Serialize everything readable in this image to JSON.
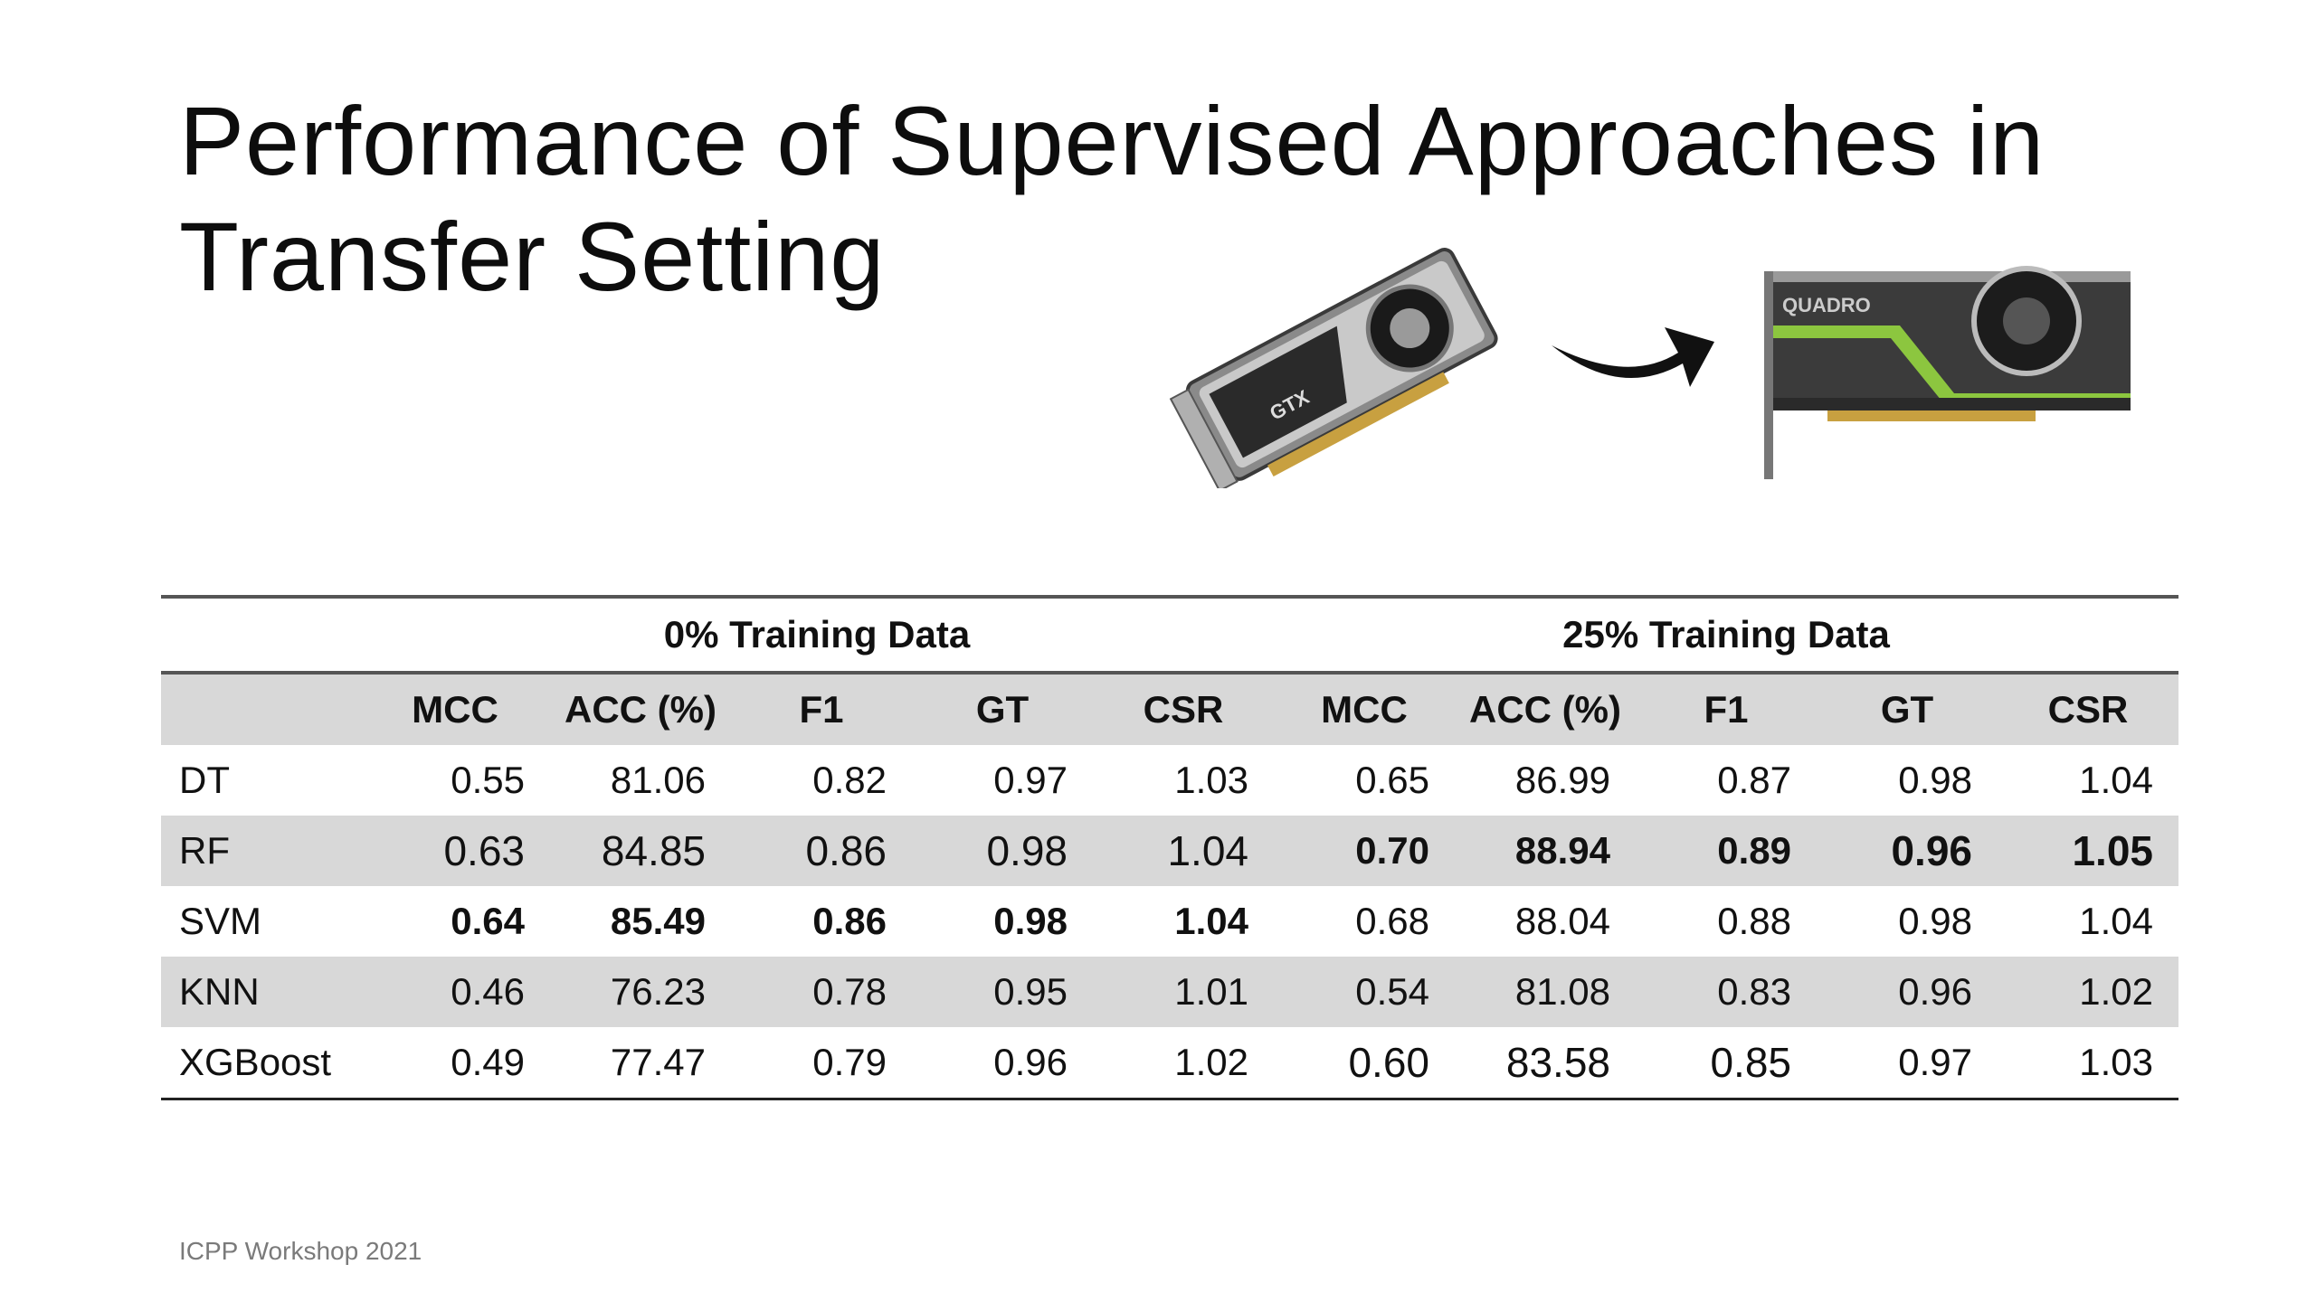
{
  "slide": {
    "title": "Performance of Supervised Approaches in Transfer Setting",
    "footer": "ICPP Workshop 2021"
  },
  "images": {
    "source_gpu": {
      "icon": "gpu-card-icon",
      "label": "GTX"
    },
    "arrow": {
      "icon": "curved-arrow-right-icon"
    },
    "target_gpu": {
      "icon": "gpu-card-icon",
      "label": "QUADRO"
    }
  },
  "table": {
    "groups": [
      "0% Training Data",
      "25% Training Data"
    ],
    "columns": [
      "MCC",
      "ACC (%)",
      "F1",
      "GT",
      "CSR",
      "MCC",
      "ACC (%)",
      "F1",
      "GT",
      "CSR"
    ],
    "rows": [
      {
        "model": "DT",
        "shaded": false,
        "values": [
          "0.55",
          "81.06",
          "0.82",
          "0.97",
          "1.03",
          "0.65",
          "86.99",
          "0.87",
          "0.98",
          "1.04"
        ],
        "bold": [],
        "big": []
      },
      {
        "model": "RF",
        "shaded": true,
        "values": [
          "0.63",
          "84.85",
          "0.86",
          "0.98",
          "1.04",
          "0.70",
          "88.94",
          "0.89",
          "0.96",
          "1.05"
        ],
        "bold": [
          5,
          6,
          7,
          8,
          9
        ],
        "big": [
          0,
          1,
          2,
          3,
          4,
          8,
          9
        ]
      },
      {
        "model": "SVM",
        "shaded": false,
        "values": [
          "0.64",
          "85.49",
          "0.86",
          "0.98",
          "1.04",
          "0.68",
          "88.04",
          "0.88",
          "0.98",
          "1.04"
        ],
        "bold": [
          0,
          1,
          2,
          3,
          4
        ],
        "big": []
      },
      {
        "model": "KNN",
        "shaded": true,
        "values": [
          "0.46",
          "76.23",
          "0.78",
          "0.95",
          "1.01",
          "0.54",
          "81.08",
          "0.83",
          "0.96",
          "1.02"
        ],
        "bold": [],
        "big": []
      },
      {
        "model": "XGBoost",
        "shaded": false,
        "values": [
          "0.49",
          "77.47",
          "0.79",
          "0.96",
          "1.02",
          "0.60",
          "83.58",
          "0.85",
          "0.97",
          "1.03"
        ],
        "bold": [],
        "big": [
          5,
          6,
          7
        ]
      }
    ]
  },
  "colors": {
    "row_shade": "#d8d8d8",
    "quadro_accent": "#8cc63f"
  }
}
